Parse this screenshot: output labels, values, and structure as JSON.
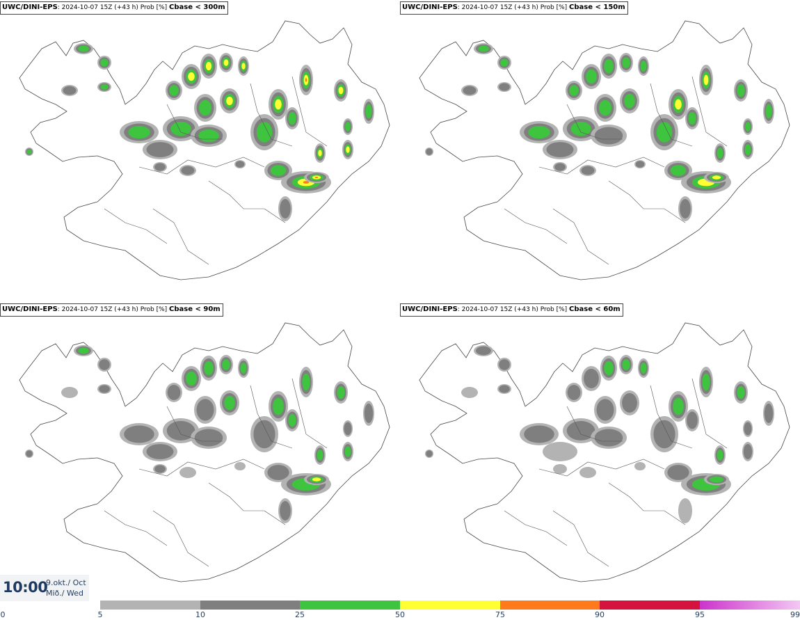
{
  "panels": [
    {
      "model": "UWC/DINI-EPS",
      "info": ": 2024-10-07 15Z (+43 h) Prob [%]",
      "threshold": "Cbase < 300m",
      "intensity": 1.0
    },
    {
      "model": "UWC/DINI-EPS",
      "info": ": 2024-10-07 15Z (+43 h) Prob [%]",
      "threshold": "Cbase < 150m",
      "intensity": 0.75
    },
    {
      "model": "UWC/DINI-EPS",
      "info": ": 2024-10-07 15Z (+43 h) Prob [%]",
      "threshold": "Cbase < 90m",
      "intensity": 0.55
    },
    {
      "model": "UWC/DINI-EPS",
      "info": ": 2024-10-07 15Z (+43 h) Prob [%]",
      "threshold": "Cbase < 60m",
      "intensity": 0.45
    }
  ],
  "clock": {
    "time": "10:00",
    "date_line1": "9.okt./ Oct",
    "date_line2": "Mið./ Wed"
  },
  "colorbar": {
    "ticks": [
      "0",
      "5",
      "10",
      "25",
      "50",
      "75",
      "90",
      "95",
      "99"
    ],
    "segments": [
      {
        "from": "5",
        "to": "10",
        "color": "#b3b3b3"
      },
      {
        "from": "10",
        "to": "25",
        "color": "#7f7f7f"
      },
      {
        "from": "25",
        "to": "50",
        "color": "#3ec43e"
      },
      {
        "from": "50",
        "to": "75",
        "color": "#ffff33"
      },
      {
        "from": "75",
        "to": "90",
        "color": "#ff7a1a"
      },
      {
        "from": "90",
        "to": "95",
        "color": "#d4143f"
      },
      {
        "from": "95",
        "to": "99",
        "color": "#cc33cc",
        "color_end": "#f3c8f3"
      }
    ]
  }
}
